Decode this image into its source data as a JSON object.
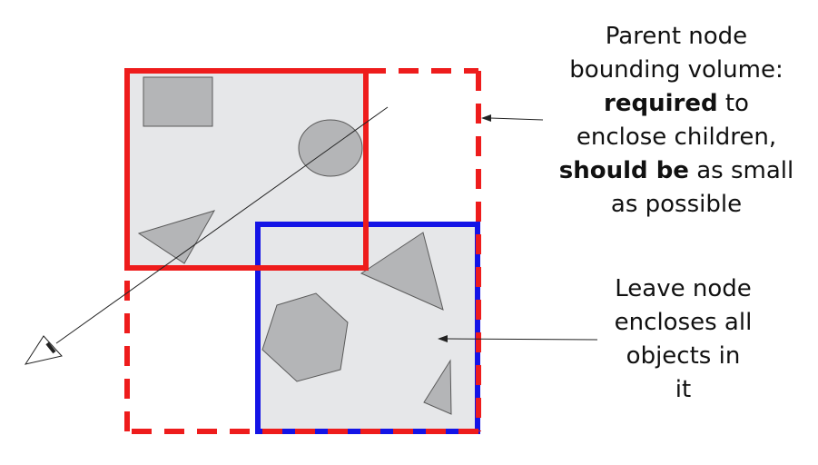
{
  "colors": {
    "parent_bound": "#ee1c1c",
    "leaf_bound": "#1414e6",
    "fill": "#e6e7e9",
    "shape_fill": "#b4b5b7",
    "shape_stroke": "#5a5a5a",
    "line": "#222222"
  },
  "callouts": {
    "parent": {
      "line1": "Parent node",
      "line2": "bounding volume:",
      "line3_bold": "required",
      "line3_rest": " to",
      "line4": "enclose children,",
      "line5_bold": "should be",
      "line5_rest": " as small",
      "line6": "as possible"
    },
    "leaf": {
      "line1": "Leave node",
      "line2": "encloses all",
      "line3": "objects in",
      "line4": "it"
    }
  },
  "icons": {
    "viewer": "eye-icon"
  }
}
